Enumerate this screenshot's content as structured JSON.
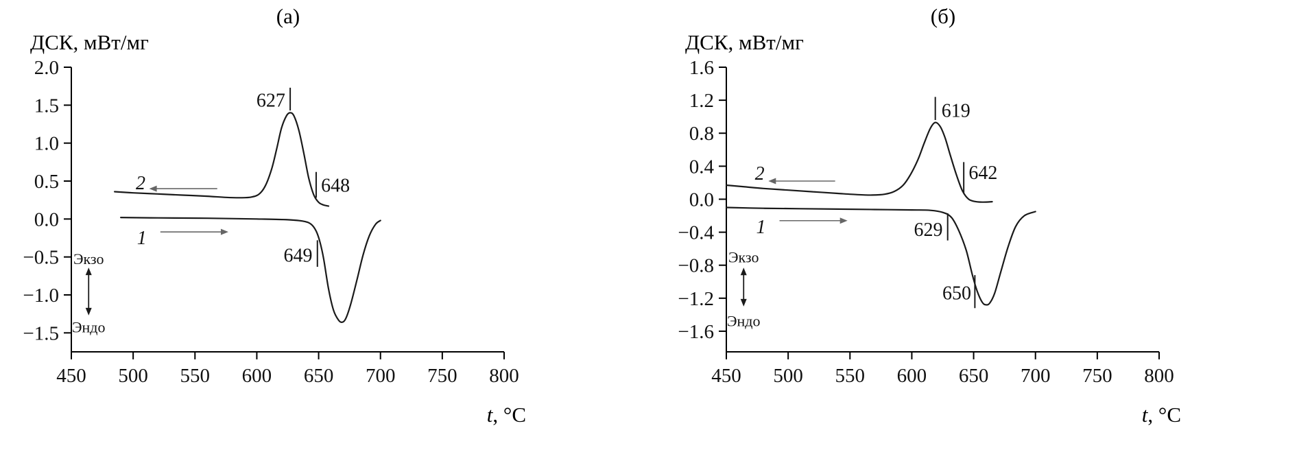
{
  "colors": {
    "curve": "#1a1a1a",
    "axis": "#000000",
    "direction_arrow": "#666666",
    "background": "#ffffff"
  },
  "chart_data": [
    {
      "type": "line",
      "title": "(а)",
      "ylabel": "ДСК, мВт/мг",
      "xlabel": {
        "italic": "t",
        "rest": ", °C"
      },
      "xlim": [
        450,
        800
      ],
      "ylim": [
        -1.5,
        2.0
      ],
      "axis_y_min": -1.75,
      "grid": false,
      "legend": false,
      "xticks": [
        450,
        500,
        550,
        600,
        650,
        700,
        750,
        800
      ],
      "ytick_values": [
        2.0,
        1.5,
        1.0,
        0.5,
        0.0,
        -0.5,
        -1.0,
        -1.5
      ],
      "ytick_labels": [
        "2.0",
        "1.5",
        "1.0",
        "0.5",
        "0.0",
        "−0.5",
        "−1.0",
        "−1.5"
      ],
      "series": [
        {
          "name": "1",
          "x": [
            490,
            520,
            560,
            600,
            625,
            638,
            644,
            648,
            651,
            654,
            658,
            662,
            666,
            669,
            672,
            676,
            681,
            686,
            691,
            696,
            700
          ],
          "y": [
            0.02,
            0.015,
            0.01,
            0.0,
            -0.01,
            -0.03,
            -0.07,
            -0.16,
            -0.3,
            -0.52,
            -0.92,
            -1.2,
            -1.33,
            -1.36,
            -1.31,
            -1.12,
            -0.8,
            -0.47,
            -0.22,
            -0.07,
            -0.02
          ]
        },
        {
          "name": "2",
          "x": [
            485,
            500,
            520,
            540,
            560,
            575,
            588,
            596,
            602,
            607,
            612,
            616,
            620,
            624,
            627,
            630,
            634,
            638,
            642,
            646,
            650,
            654,
            658
          ],
          "y": [
            0.36,
            0.345,
            0.33,
            0.315,
            0.3,
            0.285,
            0.28,
            0.29,
            0.33,
            0.44,
            0.66,
            0.92,
            1.2,
            1.36,
            1.4,
            1.36,
            1.17,
            0.87,
            0.54,
            0.32,
            0.22,
            0.185,
            0.17
          ]
        }
      ],
      "curve_labels": [
        {
          "text": "2",
          "x": 506,
          "y": 0.48
        },
        {
          "text": "1",
          "x": 507,
          "y": -0.24
        }
      ],
      "direction_arrows": [
        {
          "x_from": 568,
          "x_to": 513,
          "y": 0.4
        },
        {
          "x_from": 522,
          "x_to": 577,
          "y": -0.17
        }
      ],
      "peak_annotations": [
        {
          "label": "627",
          "text_x": 623,
          "text_y": 1.57,
          "anchor": "end",
          "tick_x": 627,
          "tick_y1": 1.43,
          "tick_y2": 1.73
        },
        {
          "label": "648",
          "text_x": 652,
          "text_y": 0.45,
          "anchor": "start",
          "tick_x": 648,
          "tick_y1": 0.28,
          "tick_y2": 0.62
        },
        {
          "label": "649",
          "text_x": 645,
          "text_y": -0.47,
          "anchor": "end",
          "tick_x": 649,
          "tick_y1": -0.63,
          "tick_y2": -0.28
        }
      ],
      "exo_endo": {
        "x": 464,
        "exo_label": "Экзо",
        "endo_label": "Эндо",
        "exo_y": -0.52,
        "arrow_y1": -0.64,
        "arrow_y2": -1.27,
        "endo_y": -1.42
      }
    },
    {
      "type": "line",
      "title": "(б)",
      "ylabel": "ДСК, мВт/мг",
      "xlabel": {
        "italic": "t",
        "rest": ", °C"
      },
      "xlim": [
        450,
        800
      ],
      "ylim": [
        -1.6,
        1.6
      ],
      "axis_y_min": -1.85,
      "grid": false,
      "legend": false,
      "xticks": [
        450,
        500,
        550,
        600,
        650,
        700,
        750,
        800
      ],
      "ytick_values": [
        1.6,
        1.2,
        0.8,
        0.4,
        0.0,
        -0.4,
        -0.8,
        -1.2,
        -1.6
      ],
      "ytick_labels": [
        "1.6",
        "1.2",
        "0.8",
        "0.4",
        "0.0",
        "−0.4",
        "−0.8",
        "−1.2",
        "−1.6"
      ],
      "series": [
        {
          "name": "1",
          "x": [
            450,
            480,
            510,
            540,
            570,
            600,
            615,
            625,
            632,
            638,
            644,
            649,
            653,
            657,
            660,
            663,
            667,
            672,
            678,
            684,
            691,
            700
          ],
          "y": [
            -0.1,
            -0.11,
            -0.115,
            -0.12,
            -0.125,
            -0.13,
            -0.135,
            -0.16,
            -0.22,
            -0.38,
            -0.62,
            -0.92,
            -1.12,
            -1.25,
            -1.28,
            -1.26,
            -1.14,
            -0.88,
            -0.57,
            -0.33,
            -0.2,
            -0.15
          ]
        },
        {
          "name": "2",
          "x": [
            450,
            465,
            480,
            500,
            520,
            540,
            556,
            568,
            578,
            586,
            593,
            599,
            605,
            610,
            615,
            619,
            623,
            627,
            631,
            636,
            641,
            646,
            652,
            658,
            665
          ],
          "y": [
            0.17,
            0.15,
            0.13,
            0.11,
            0.09,
            0.07,
            0.055,
            0.05,
            0.06,
            0.095,
            0.17,
            0.3,
            0.48,
            0.68,
            0.86,
            0.93,
            0.88,
            0.74,
            0.54,
            0.3,
            0.1,
            0.0,
            -0.03,
            -0.035,
            -0.03
          ]
        }
      ],
      "curve_labels": [
        {
          "text": "2",
          "x": 477,
          "y": 0.32
        },
        {
          "text": "1",
          "x": 478,
          "y": -0.33
        }
      ],
      "direction_arrows": [
        {
          "x_from": 538,
          "x_to": 484,
          "y": 0.22
        },
        {
          "x_from": 493,
          "x_to": 548,
          "y": -0.26
        }
      ],
      "peak_annotations": [
        {
          "label": "619",
          "text_x": 624,
          "text_y": 1.08,
          "anchor": "start",
          "tick_x": 619,
          "tick_y1": 0.96,
          "tick_y2": 1.24
        },
        {
          "label": "642",
          "text_x": 646,
          "text_y": 0.33,
          "anchor": "start",
          "tick_x": 642,
          "tick_y1": 0.07,
          "tick_y2": 0.45
        },
        {
          "label": "629",
          "text_x": 625,
          "text_y": -0.36,
          "anchor": "end",
          "tick_x": 629,
          "tick_y1": -0.5,
          "tick_y2": -0.17
        },
        {
          "label": "650",
          "text_x": 648,
          "text_y": -1.13,
          "anchor": "end",
          "tick_x": 651,
          "tick_y1": -1.32,
          "tick_y2": -0.92
        }
      ],
      "exo_endo": {
        "x": 464,
        "exo_label": "Экзо",
        "endo_label": "Эндо",
        "exo_y": -0.7,
        "arrow_y1": -0.83,
        "arrow_y2": -1.3,
        "endo_y": -1.47
      }
    }
  ]
}
